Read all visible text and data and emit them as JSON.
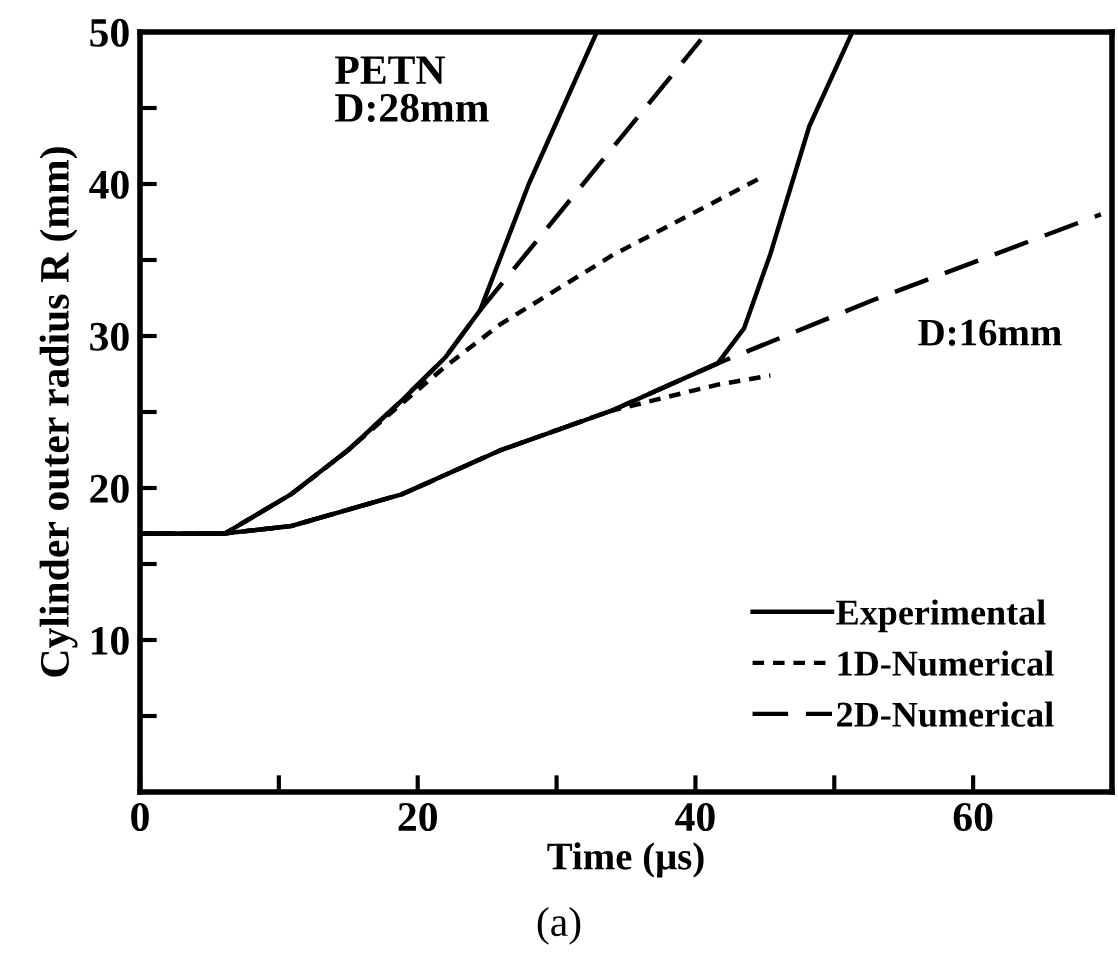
{
  "chart_data": {
    "type": "line",
    "xlabel": "Time (μs)",
    "ylabel": "Cylinder outer radius R (mm)",
    "xlim": [
      0,
      70
    ],
    "ylim": [
      0,
      50
    ],
    "xticks": [
      0,
      {
        "value": 10,
        "label": null
      },
      20,
      {
        "value": 30,
        "label": null
      },
      40,
      {
        "value": 50,
        "label": null
      },
      60
    ],
    "yticks": [
      {
        "value": 0,
        "label": null
      },
      {
        "value": 5,
        "label": null
      },
      10,
      {
        "value": 15,
        "label": null
      },
      20,
      {
        "value": 25,
        "label": null
      },
      30,
      {
        "value": 35,
        "label": null
      },
      40,
      {
        "value": 45,
        "label": null
      },
      50
    ],
    "grid": false,
    "legend": "bottom right",
    "marker": "none",
    "series": [
      {
        "name": "Experimental",
        "color": "#000000",
        "line_style": "solid",
        "x": [
          0,
          6.1,
          10.9,
          15,
          18.9,
          22,
          24.5,
          28,
          32.9
        ],
        "values": [
          17,
          17,
          19.6,
          22.5,
          25.8,
          28.6,
          31.7,
          40,
          50
        ]
      },
      {
        "name": "1D-Numerical",
        "color": "#000000",
        "line_style": "dotted",
        "x": [
          0,
          6.1,
          10.9,
          15,
          18.9,
          22,
          26,
          34,
          44.9
        ],
        "values": [
          17,
          17,
          19.6,
          22.5,
          25.6,
          28,
          30.8,
          35.3,
          40.5
        ]
      },
      {
        "name": "2D-Numerical",
        "color": "#000000",
        "line_style": "dashed",
        "x": [
          0,
          6.1,
          10.9,
          15,
          18.9,
          22,
          24.5,
          40.4
        ],
        "values": [
          17,
          17,
          19.6,
          22.5,
          25.8,
          28.6,
          31.7,
          49.5
        ]
      },
      {
        "color": "#000000",
        "line_style": "solid",
        "x": [
          0,
          6,
          10.9,
          18.9,
          26,
          34,
          41.6,
          43.5,
          45.4,
          48.2,
          51.3
        ],
        "values": [
          17,
          17,
          17.5,
          19.6,
          22.5,
          25.1,
          28.2,
          30.5,
          35.4,
          43.8,
          50
        ]
      },
      {
        "color": "#000000",
        "line_style": "dotted",
        "x": [
          0,
          6,
          10.9,
          18.9,
          26,
          34,
          41.6,
          45.4
        ],
        "values": [
          17,
          17,
          17.5,
          19.6,
          22.5,
          25.1,
          26.8,
          27.4
        ]
      },
      {
        "color": "#000000",
        "line_style": "dashed",
        "x": [
          0,
          6,
          10.9,
          18.9,
          26,
          34,
          41.6,
          52.9,
          69.2
        ],
        "values": [
          17,
          17,
          17.5,
          19.6,
          22.5,
          25.1,
          28.2,
          32.4,
          38
        ]
      }
    ],
    "annotations": [
      "PETN\nD:28mm",
      "D:16mm",
      "(a)"
    ]
  }
}
